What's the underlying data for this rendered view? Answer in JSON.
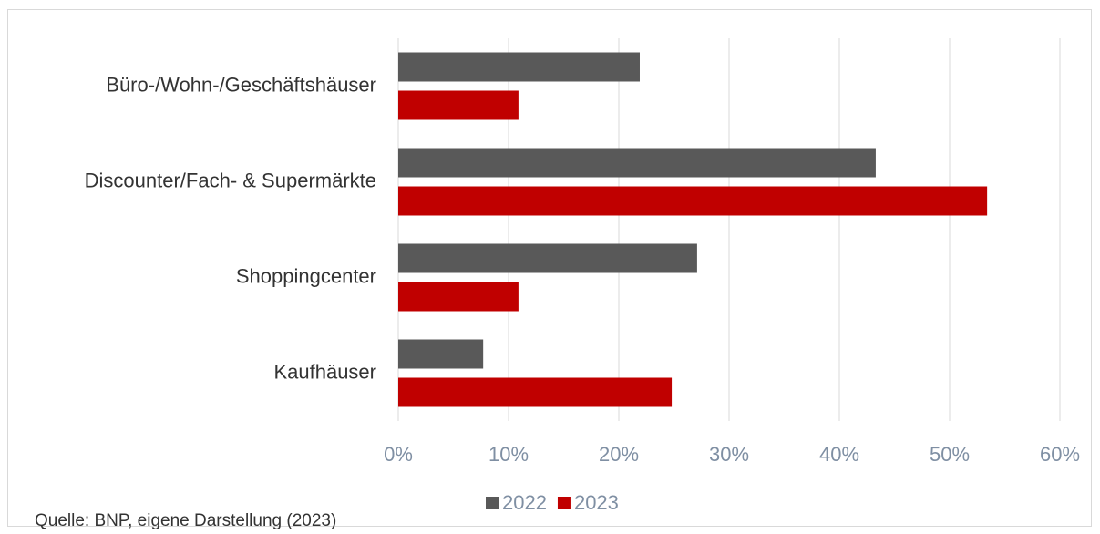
{
  "chart_data": {
    "type": "bar",
    "orientation": "horizontal",
    "categories": [
      "Büro-/Wohn-/Geschäftshäuser",
      "Discounter/Fach- & Supermärkte",
      "Shoppingcenter",
      "Kaufhäuser"
    ],
    "series": [
      {
        "name": "2022",
        "color": "#595959",
        "values": [
          21.9,
          43.3,
          27.1,
          7.7
        ]
      },
      {
        "name": "2023",
        "color": "#c00000",
        "values": [
          10.9,
          53.4,
          10.9,
          24.8
        ]
      }
    ],
    "xlim": [
      0,
      60
    ],
    "xticks": [
      {
        "value": 0,
        "label": "0%"
      },
      {
        "value": 10,
        "label": "10%"
      },
      {
        "value": 20,
        "label": "20%"
      },
      {
        "value": 30,
        "label": "30%"
      },
      {
        "value": 40,
        "label": "40%"
      },
      {
        "value": 50,
        "label": "50%"
      },
      {
        "value": 60,
        "label": "60%"
      }
    ],
    "grid": true,
    "legend": "bottom",
    "source": "Quelle: BNP, eigene Darstellung (2023)"
  }
}
